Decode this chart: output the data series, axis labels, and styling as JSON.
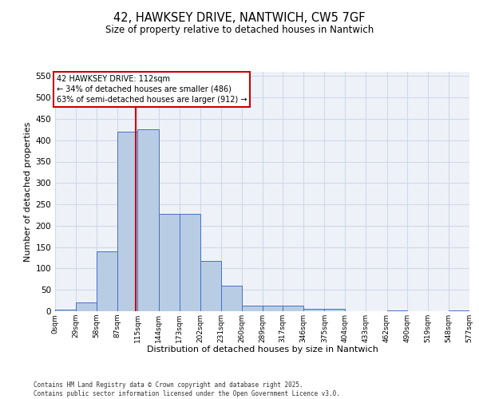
{
  "title": "42, HAWKSEY DRIVE, NANTWICH, CW5 7GF",
  "subtitle": "Size of property relative to detached houses in Nantwich",
  "xlabel": "Distribution of detached houses by size in Nantwich",
  "ylabel": "Number of detached properties",
  "bar_edges": [
    0,
    29,
    58,
    87,
    115,
    144,
    173,
    202,
    231,
    260,
    289,
    317,
    346,
    375,
    404,
    433,
    462,
    490,
    519,
    548,
    577
  ],
  "bar_heights": [
    3,
    20,
    140,
    420,
    425,
    228,
    228,
    117,
    60,
    13,
    13,
    13,
    6,
    6,
    0,
    0,
    2,
    0,
    0,
    2
  ],
  "bar_color": "#b8cce4",
  "bar_edge_color": "#4472c4",
  "grid_color": "#d0d8e8",
  "background_color": "#eef2f8",
  "vline_x": 112,
  "vline_color": "#cc0000",
  "annotation_line1": "42 HAWKSEY DRIVE: 112sqm",
  "annotation_line2": "← 34% of detached houses are smaller (486)",
  "annotation_line3": "63% of semi-detached houses are larger (912) →",
  "annotation_box_color": "#ffffff",
  "annotation_box_edge_color": "#cc0000",
  "footer_text": "Contains HM Land Registry data © Crown copyright and database right 2025.\nContains public sector information licensed under the Open Government Licence v3.0.",
  "ylim": [
    0,
    560
  ],
  "yticks": [
    0,
    50,
    100,
    150,
    200,
    250,
    300,
    350,
    400,
    450,
    500,
    550
  ]
}
